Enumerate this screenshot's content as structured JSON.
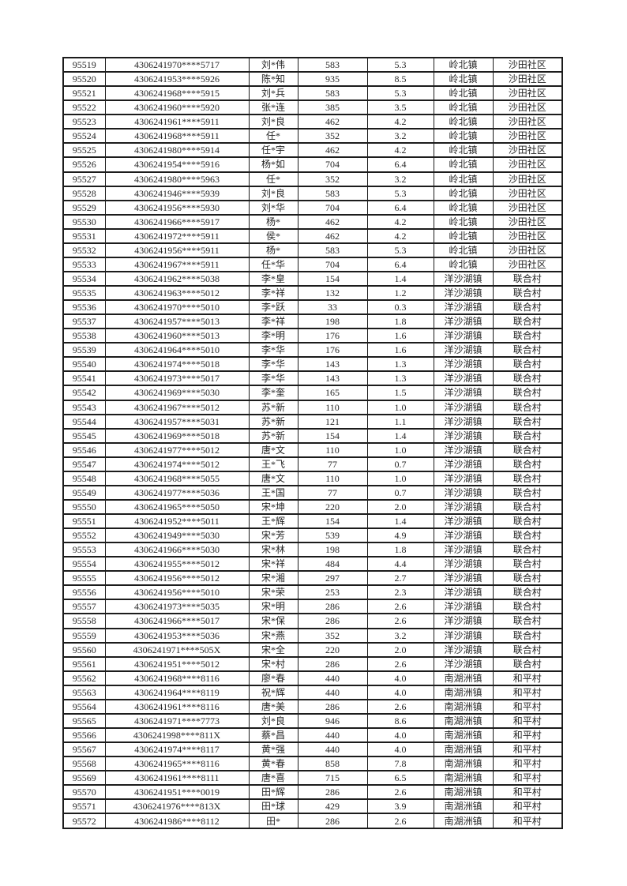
{
  "page": {
    "background_color": "#ffffff",
    "text_color": "#262626",
    "border_color": "#1c1c1c"
  },
  "table": {
    "column_count": 7,
    "row_count": 54,
    "rows": [
      [
        "95519",
        "4306241970****5717",
        "刘*伟",
        "583",
        "5.3",
        "岭北镇",
        "沙田社区"
      ],
      [
        "95520",
        "4306241953****5926",
        "陈*知",
        "935",
        "8.5",
        "岭北镇",
        "沙田社区"
      ],
      [
        "95521",
        "4306241968****5915",
        "刘*兵",
        "583",
        "5.3",
        "岭北镇",
        "沙田社区"
      ],
      [
        "95522",
        "4306241960****5920",
        "张*连",
        "385",
        "3.5",
        "岭北镇",
        "沙田社区"
      ],
      [
        "95523",
        "4306241961****5911",
        "刘*良",
        "462",
        "4.2",
        "岭北镇",
        "沙田社区"
      ],
      [
        "95524",
        "4306241968****5911",
        "任*",
        "352",
        "3.2",
        "岭北镇",
        "沙田社区"
      ],
      [
        "95525",
        "4306241980****5914",
        "任*宇",
        "462",
        "4.2",
        "岭北镇",
        "沙田社区"
      ],
      [
        "95526",
        "4306241954****5916",
        "杨*如",
        "704",
        "6.4",
        "岭北镇",
        "沙田社区"
      ],
      [
        "95527",
        "4306241980****5963",
        "任*",
        "352",
        "3.2",
        "岭北镇",
        "沙田社区"
      ],
      [
        "95528",
        "4306241946****5939",
        "刘*良",
        "583",
        "5.3",
        "岭北镇",
        "沙田社区"
      ],
      [
        "95529",
        "4306241956****5930",
        "刘*华",
        "704",
        "6.4",
        "岭北镇",
        "沙田社区"
      ],
      [
        "95530",
        "4306241966****5917",
        "杨*",
        "462",
        "4.2",
        "岭北镇",
        "沙田社区"
      ],
      [
        "95531",
        "4306241972****5911",
        "侯*",
        "462",
        "4.2",
        "岭北镇",
        "沙田社区"
      ],
      [
        "95532",
        "4306241956****5911",
        "杨*",
        "583",
        "5.3",
        "岭北镇",
        "沙田社区"
      ],
      [
        "95533",
        "4306241967****5911",
        "任*华",
        "704",
        "6.4",
        "岭北镇",
        "沙田社区"
      ],
      [
        "95534",
        "4306241962****5038",
        "李*皇",
        "154",
        "1.4",
        "洋沙湖镇",
        "联合村"
      ],
      [
        "95535",
        "4306241963****5012",
        "李*祥",
        "132",
        "1.2",
        "洋沙湖镇",
        "联合村"
      ],
      [
        "95536",
        "4306241970****5010",
        "李*跃",
        "33",
        "0.3",
        "洋沙湖镇",
        "联合村"
      ],
      [
        "95537",
        "4306241957****5013",
        "李*祥",
        "198",
        "1.8",
        "洋沙湖镇",
        "联合村"
      ],
      [
        "95538",
        "4306241960****5013",
        "李*明",
        "176",
        "1.6",
        "洋沙湖镇",
        "联合村"
      ],
      [
        "95539",
        "4306241964****5010",
        "李*华",
        "176",
        "1.6",
        "洋沙湖镇",
        "联合村"
      ],
      [
        "95540",
        "4306241974****5018",
        "李*华",
        "143",
        "1.3",
        "洋沙湖镇",
        "联合村"
      ],
      [
        "95541",
        "4306241973****5017",
        "李*华",
        "143",
        "1.3",
        "洋沙湖镇",
        "联合村"
      ],
      [
        "95542",
        "4306241969****5030",
        "李*奎",
        "165",
        "1.5",
        "洋沙湖镇",
        "联合村"
      ],
      [
        "95543",
        "4306241967****5012",
        "苏*新",
        "110",
        "1.0",
        "洋沙湖镇",
        "联合村"
      ],
      [
        "95544",
        "4306241957****5031",
        "苏*新",
        "121",
        "1.1",
        "洋沙湖镇",
        "联合村"
      ],
      [
        "95545",
        "4306241969****5018",
        "苏*新",
        "154",
        "1.4",
        "洋沙湖镇",
        "联合村"
      ],
      [
        "95546",
        "4306241977****5012",
        "唐*文",
        "110",
        "1.0",
        "洋沙湖镇",
        "联合村"
      ],
      [
        "95547",
        "4306241974****5012",
        "王*飞",
        "77",
        "0.7",
        "洋沙湖镇",
        "联合村"
      ],
      [
        "95548",
        "4306241968****5055",
        "唐*文",
        "110",
        "1.0",
        "洋沙湖镇",
        "联合村"
      ],
      [
        "95549",
        "4306241977****5036",
        "王*国",
        "77",
        "0.7",
        "洋沙湖镇",
        "联合村"
      ],
      [
        "95550",
        "4306241965****5050",
        "宋*坤",
        "220",
        "2.0",
        "洋沙湖镇",
        "联合村"
      ],
      [
        "95551",
        "4306241952****5011",
        "王*辉",
        "154",
        "1.4",
        "洋沙湖镇",
        "联合村"
      ],
      [
        "95552",
        "4306241949****5030",
        "宋*芳",
        "539",
        "4.9",
        "洋沙湖镇",
        "联合村"
      ],
      [
        "95553",
        "4306241966****5030",
        "宋*林",
        "198",
        "1.8",
        "洋沙湖镇",
        "联合村"
      ],
      [
        "95554",
        "4306241955****5012",
        "宋*祥",
        "484",
        "4.4",
        "洋沙湖镇",
        "联合村"
      ],
      [
        "95555",
        "4306241956****5012",
        "宋*湘",
        "297",
        "2.7",
        "洋沙湖镇",
        "联合村"
      ],
      [
        "95556",
        "4306241956****5010",
        "宋*荣",
        "253",
        "2.3",
        "洋沙湖镇",
        "联合村"
      ],
      [
        "95557",
        "4306241973****5035",
        "宋*明",
        "286",
        "2.6",
        "洋沙湖镇",
        "联合村"
      ],
      [
        "95558",
        "4306241966****5017",
        "宋*保",
        "286",
        "2.6",
        "洋沙湖镇",
        "联合村"
      ],
      [
        "95559",
        "4306241953****5036",
        "宋*燕",
        "352",
        "3.2",
        "洋沙湖镇",
        "联合村"
      ],
      [
        "95560",
        "4306241971****505X",
        "宋*全",
        "220",
        "2.0",
        "洋沙湖镇",
        "联合村"
      ],
      [
        "95561",
        "4306241951****5012",
        "宋*村",
        "286",
        "2.6",
        "洋沙湖镇",
        "联合村"
      ],
      [
        "95562",
        "4306241968****8116",
        "廖*春",
        "440",
        "4.0",
        "南湖洲镇",
        "和平村"
      ],
      [
        "95563",
        "4306241964****8119",
        "祝*辉",
        "440",
        "4.0",
        "南湖洲镇",
        "和平村"
      ],
      [
        "95564",
        "4306241961****8116",
        "唐*美",
        "286",
        "2.6",
        "南湖洲镇",
        "和平村"
      ],
      [
        "95565",
        "4306241971****7773",
        "刘*良",
        "946",
        "8.6",
        "南湖洲镇",
        "和平村"
      ],
      [
        "95566",
        "4306241998****811X",
        "蔡*昌",
        "440",
        "4.0",
        "南湖洲镇",
        "和平村"
      ],
      [
        "95567",
        "4306241974****8117",
        "黄*强",
        "440",
        "4.0",
        "南湖洲镇",
        "和平村"
      ],
      [
        "95568",
        "4306241965****8116",
        "黄*春",
        "858",
        "7.8",
        "南湖洲镇",
        "和平村"
      ],
      [
        "95569",
        "4306241961****8111",
        "唐*喜",
        "715",
        "6.5",
        "南湖洲镇",
        "和平村"
      ],
      [
        "95570",
        "4306241951****0019",
        "田*辉",
        "286",
        "2.6",
        "南湖洲镇",
        "和平村"
      ],
      [
        "95571",
        "4306241976****813X",
        "田*球",
        "429",
        "3.9",
        "南湖洲镇",
        "和平村"
      ],
      [
        "95572",
        "4306241986****8112",
        "田*",
        "286",
        "2.6",
        "南湖洲镇",
        "和平村"
      ]
    ]
  }
}
